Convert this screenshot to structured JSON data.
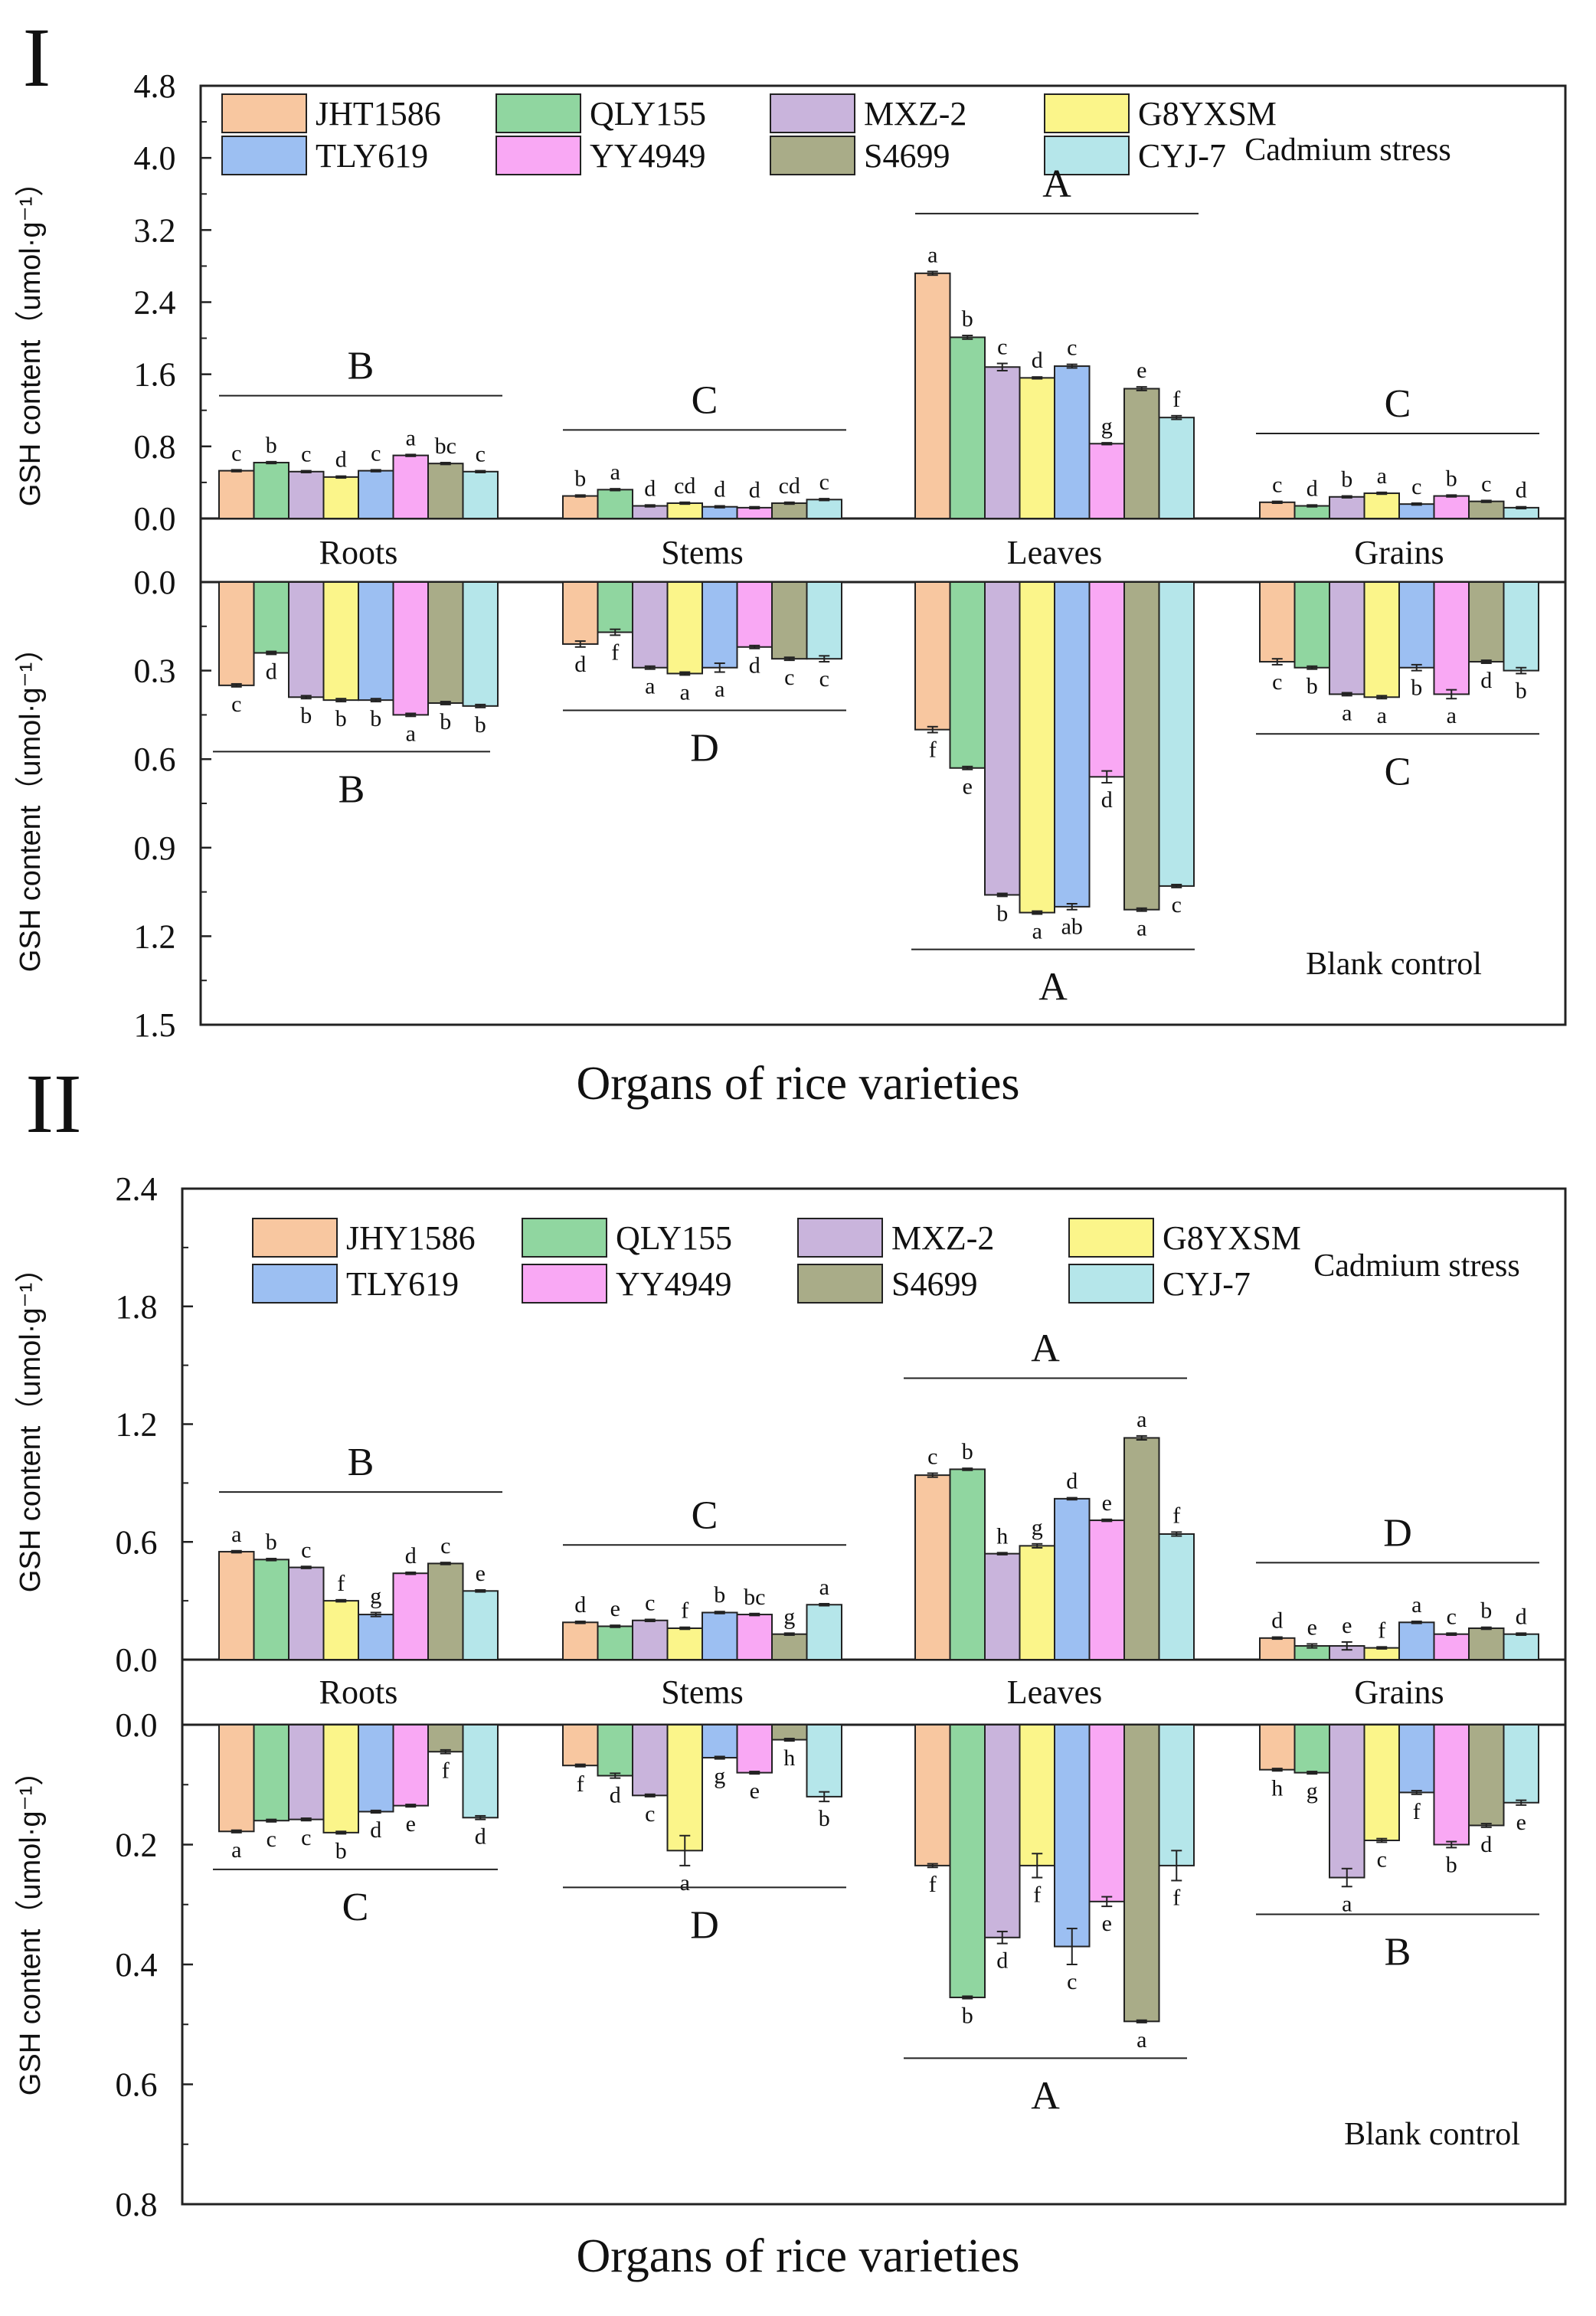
{
  "chart_data": [
    {
      "panel": "I",
      "type": "bar",
      "xlabel": "Organs of rice varieties",
      "ylabel": "GSH content（umol·g⁻¹）",
      "categories": [
        "Roots",
        "Stems",
        "Leaves",
        "Grains"
      ],
      "legend": [
        "JHT1586",
        "QLY155",
        "MXZ-2",
        "G8YXSM",
        "TLY619",
        "YY4949",
        "S4699",
        "CYJ-7"
      ],
      "colors": [
        "#f8c7a0",
        "#90d6a0",
        "#c9b4dc",
        "#fbf58a",
        "#9cbff2",
        "#f9a8f4",
        "#a9ac88",
        "#b5e6ea"
      ],
      "top": {
        "label": "Cadmium stress",
        "ylim": [
          0,
          4.8
        ],
        "ticks": [
          "0.0",
          "0.8",
          "1.6",
          "2.4",
          "3.2",
          "4.0",
          "4.8"
        ],
        "tick_values": [
          0,
          0.8,
          1.6,
          2.4,
          3.2,
          4.0,
          4.8
        ],
        "values": [
          [
            0.53,
            0.62,
            0.52,
            0.46,
            0.53,
            0.7,
            0.61,
            0.52
          ],
          [
            0.25,
            0.32,
            0.14,
            0.17,
            0.13,
            0.12,
            0.17,
            0.21
          ],
          [
            2.72,
            2.01,
            1.68,
            1.56,
            1.69,
            0.83,
            1.44,
            1.12
          ],
          [
            0.18,
            0.14,
            0.24,
            0.28,
            0.16,
            0.25,
            0.19,
            0.12
          ]
        ],
        "errors": [
          [
            0.01,
            0.01,
            0.01,
            0.01,
            0.01,
            0.01,
            0.01,
            0.01
          ],
          [
            0.01,
            0.01,
            0.01,
            0.01,
            0.01,
            0.01,
            0.01,
            0.01
          ],
          [
            0.02,
            0.02,
            0.04,
            0.01,
            0.02,
            0.01,
            0.02,
            0.02
          ],
          [
            0.01,
            0.01,
            0.01,
            0.01,
            0.01,
            0.01,
            0.01,
            0.01
          ]
        ],
        "letters": [
          [
            "c",
            "b",
            "c",
            "d",
            "c",
            "a",
            "bc",
            "c"
          ],
          [
            "b",
            "a",
            "d",
            "cd",
            "d",
            "d",
            "cd",
            "c"
          ],
          [
            "a",
            "b",
            "c",
            "d",
            "c",
            "g",
            "e",
            "f"
          ],
          [
            "c",
            "d",
            "b",
            "a",
            "c",
            "b",
            "c",
            "d"
          ]
        ],
        "groups": [
          "B",
          "C",
          "A",
          "C"
        ]
      },
      "bottom": {
        "label": "Blank control",
        "ylim": [
          0,
          1.5
        ],
        "ticks": [
          "0.0",
          "0.3",
          "0.6",
          "0.9",
          "1.2",
          "1.5"
        ],
        "tick_values": [
          0,
          0.3,
          0.6,
          0.9,
          1.2,
          1.5
        ],
        "values": [
          [
            0.35,
            0.24,
            0.39,
            0.4,
            0.4,
            0.45,
            0.41,
            0.42
          ],
          [
            0.21,
            0.17,
            0.29,
            0.31,
            0.29,
            0.22,
            0.26,
            0.26
          ],
          [
            0.5,
            0.63,
            1.06,
            1.12,
            1.1,
            0.66,
            1.11,
            1.03
          ],
          [
            0.27,
            0.29,
            0.38,
            0.39,
            0.29,
            0.38,
            0.27,
            0.3
          ]
        ],
        "errors": [
          [
            0.005,
            0.005,
            0.005,
            0.005,
            0.005,
            0.005,
            0.005,
            0.005
          ],
          [
            0.01,
            0.01,
            0.005,
            0.005,
            0.015,
            0.005,
            0.005,
            0.01
          ],
          [
            0.01,
            0.005,
            0.005,
            0.005,
            0.01,
            0.02,
            0.005,
            0.005
          ],
          [
            0.01,
            0.005,
            0.005,
            0.005,
            0.01,
            0.015,
            0.005,
            0.01
          ]
        ],
        "letters": [
          [
            "c",
            "d",
            "b",
            "b",
            "b",
            "a",
            "b",
            "b"
          ],
          [
            "d",
            "f",
            "a",
            "a",
            "a",
            "d",
            "c",
            "c"
          ],
          [
            "f",
            "e",
            "b",
            "a",
            "ab",
            "d",
            "a",
            "c"
          ],
          [
            "c",
            "b",
            "a",
            "a",
            "b",
            "a",
            "d",
            "b"
          ]
        ],
        "groups": [
          "B",
          "D",
          "A",
          "C"
        ]
      }
    },
    {
      "panel": "II",
      "type": "bar",
      "xlabel": "Organs of rice varieties",
      "ylabel": "GSH content（umol·g⁻¹）",
      "categories": [
        "Roots",
        "Stems",
        "Leaves",
        "Grains"
      ],
      "legend": [
        "JHY1586",
        "QLY155",
        "MXZ-2",
        "G8YXSM",
        "TLY619",
        "YY4949",
        "S4699",
        "CYJ-7"
      ],
      "colors": [
        "#f8c7a0",
        "#90d6a0",
        "#c9b4dc",
        "#fbf58a",
        "#9cbff2",
        "#f9a8f4",
        "#a9ac88",
        "#b5e6ea"
      ],
      "top": {
        "label": "Cadmium stress",
        "ylim": [
          0,
          2.4
        ],
        "ticks": [
          "0.0",
          "0.6",
          "1.2",
          "1.8",
          "2.4"
        ],
        "tick_values": [
          0,
          0.6,
          1.2,
          1.8,
          2.4
        ],
        "values": [
          [
            0.55,
            0.51,
            0.47,
            0.3,
            0.23,
            0.44,
            0.49,
            0.35
          ],
          [
            0.19,
            0.17,
            0.2,
            0.16,
            0.24,
            0.23,
            0.13,
            0.28
          ],
          [
            0.94,
            0.97,
            0.54,
            0.58,
            0.82,
            0.71,
            1.13,
            0.64
          ],
          [
            0.11,
            0.07,
            0.07,
            0.06,
            0.19,
            0.13,
            0.16,
            0.13
          ]
        ],
        "errors": [
          [
            0.005,
            0.005,
            0.005,
            0.005,
            0.01,
            0.005,
            0.005,
            0.005
          ],
          [
            0.005,
            0.005,
            0.005,
            0.005,
            0.005,
            0.005,
            0.005,
            0.005
          ],
          [
            0.01,
            0.005,
            0.005,
            0.01,
            0.005,
            0.005,
            0.01,
            0.01
          ],
          [
            0.005,
            0.01,
            0.02,
            0.005,
            0.005,
            0.005,
            0.005,
            0.005
          ]
        ],
        "letters": [
          [
            "a",
            "b",
            "c",
            "f",
            "g",
            "d",
            "c",
            "e"
          ],
          [
            "d",
            "e",
            "c",
            "f",
            "b",
            "bc",
            "g",
            "a"
          ],
          [
            "c",
            "b",
            "h",
            "g",
            "d",
            "e",
            "a",
            "f"
          ],
          [
            "d",
            "e",
            "e",
            "f",
            "a",
            "c",
            "b",
            "d"
          ]
        ],
        "groups": [
          "B",
          "C",
          "A",
          "D"
        ]
      },
      "bottom": {
        "label": "Blank control",
        "ylim": [
          0,
          0.8
        ],
        "ticks": [
          "0.0",
          "0.2",
          "0.4",
          "0.6",
          "0.8"
        ],
        "tick_values": [
          0,
          0.2,
          0.4,
          0.6,
          0.8
        ],
        "values": [
          [
            0.178,
            0.16,
            0.158,
            0.18,
            0.145,
            0.135,
            0.045,
            0.155
          ],
          [
            0.068,
            0.085,
            0.118,
            0.21,
            0.055,
            0.08,
            0.025,
            0.12
          ],
          [
            0.235,
            0.455,
            0.355,
            0.235,
            0.37,
            0.295,
            0.495,
            0.235
          ],
          [
            0.075,
            0.08,
            0.255,
            0.193,
            0.113,
            0.2,
            0.168,
            0.13
          ]
        ],
        "errors": [
          [
            0.002,
            0.002,
            0.002,
            0.002,
            0.002,
            0.002,
            0.003,
            0.003
          ],
          [
            0.002,
            0.004,
            0.002,
            0.025,
            0.002,
            0.002,
            0.002,
            0.008
          ],
          [
            0.003,
            0.002,
            0.01,
            0.02,
            0.03,
            0.008,
            0.002,
            0.025
          ],
          [
            0.002,
            0.002,
            0.015,
            0.003,
            0.003,
            0.005,
            0.003,
            0.004
          ]
        ],
        "letters": [
          [
            "a",
            "c",
            "c",
            "b",
            "d",
            "e",
            "f",
            "d"
          ],
          [
            "f",
            "d",
            "c",
            "a",
            "g",
            "e",
            "h",
            "b"
          ],
          [
            "f",
            "b",
            "d",
            "f",
            "c",
            "e",
            "a",
            "f"
          ],
          [
            "h",
            "g",
            "a",
            "c",
            "f",
            "b",
            "d",
            "e"
          ]
        ],
        "groups": [
          "C",
          "D",
          "A",
          "B"
        ]
      }
    }
  ]
}
